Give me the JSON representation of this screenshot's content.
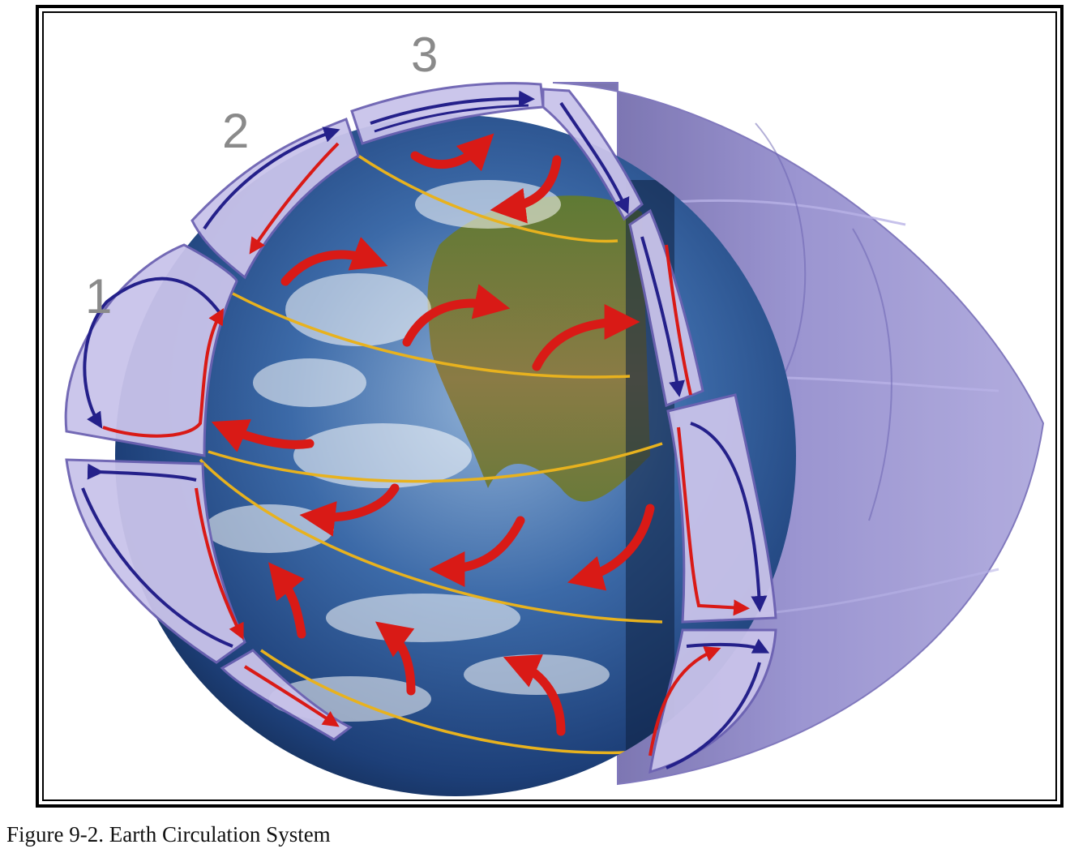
{
  "figure": {
    "caption": "Figure 9-2. Earth Circulation System",
    "cell_labels": [
      "1",
      "2",
      "3"
    ]
  },
  "colors": {
    "cell_fill": "#c9c3ea",
    "cell_stroke": "#6c62b2",
    "shell_fill": "#8078c0",
    "ocean": "#2f5c9e",
    "land": "#6f7f3a",
    "latitude_line": "#e8b21e",
    "warm_arrow": "#d91a16",
    "cool_arrow": "#24208a"
  },
  "icons": [
    "globe-icon",
    "wind-arrow-icon",
    "circulation-loop-icon"
  ]
}
